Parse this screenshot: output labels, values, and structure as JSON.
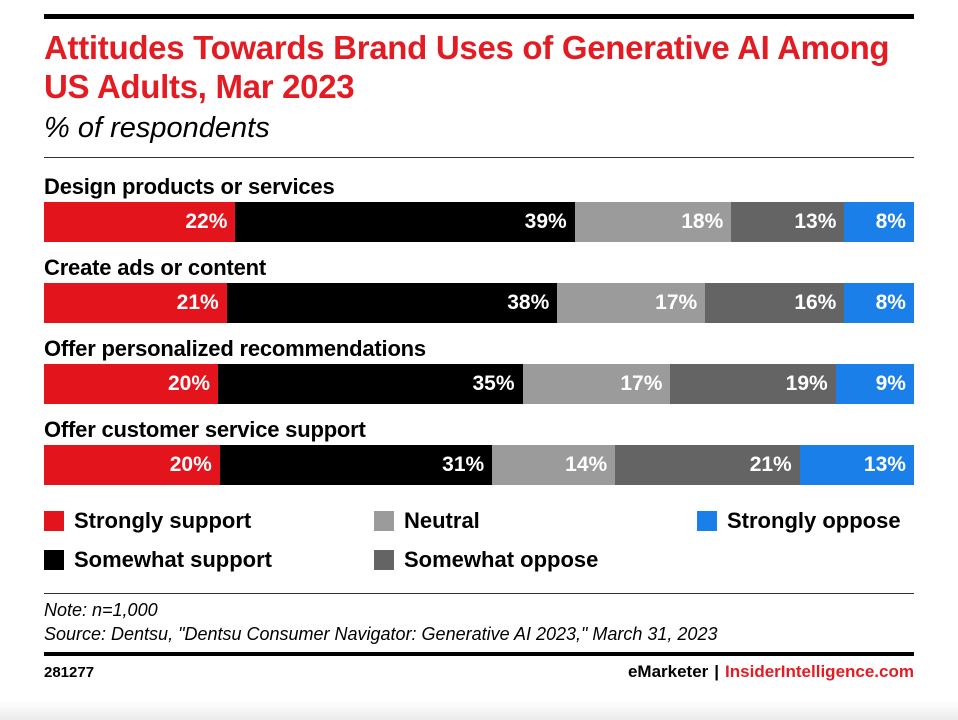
{
  "header": {
    "title": "Attitudes Towards Brand Uses of Generative AI Among US Adults, Mar 2023",
    "subtitle": "% of respondents"
  },
  "chart_data": {
    "type": "bar",
    "stacked": true,
    "orientation": "horizontal",
    "title": "Attitudes Towards Brand Uses of Generative AI Among US Adults, Mar 2023",
    "subtitle": "% of respondents",
    "categories": [
      "Design products or services",
      "Create ads or content",
      "Offer personalized recommendations",
      "Offer customer service support"
    ],
    "series": [
      {
        "name": "Strongly support",
        "color": "#e4141c",
        "values": [
          22,
          21,
          20,
          20
        ]
      },
      {
        "name": "Somewhat support",
        "color": "#000000",
        "values": [
          39,
          38,
          35,
          31
        ]
      },
      {
        "name": "Neutral",
        "color": "#9b9b9b",
        "values": [
          18,
          17,
          17,
          14
        ]
      },
      {
        "name": "Somewhat oppose",
        "color": "#646464",
        "values": [
          13,
          16,
          19,
          21
        ]
      },
      {
        "name": "Strongly oppose",
        "color": "#1a7fe8",
        "values": [
          8,
          8,
          9,
          13
        ]
      }
    ],
    "value_suffix": "%"
  },
  "legend_order": [
    "Strongly support",
    "Neutral",
    "Strongly oppose",
    "Somewhat support",
    "Somewhat oppose"
  ],
  "footer": {
    "note": "Note: n=1,000",
    "source": "Source: Dentsu, \"Dentsu Consumer Navigator: Generative AI 2023,\" March 31, 2023",
    "chart_id": "281277",
    "brand_emarketer": "eMarketer",
    "brand_separator": "|",
    "brand_insider": "InsiderIntelligence.com"
  }
}
